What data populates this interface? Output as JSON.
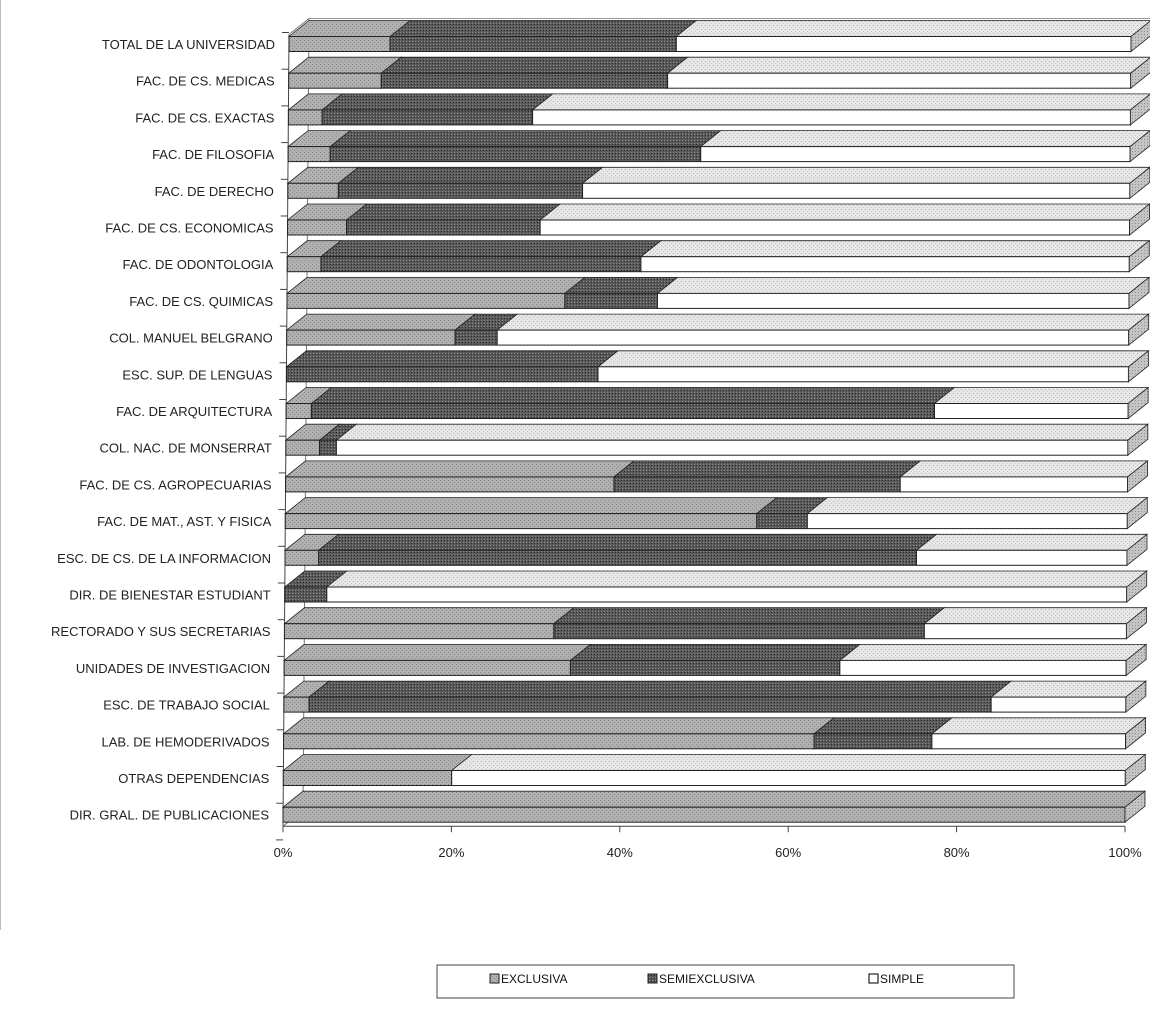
{
  "chart_data": {
    "type": "bar",
    "orientation": "horizontal",
    "stacked": "percent",
    "categories": [
      "TOTAL DE LA UNIVERSIDAD",
      "FAC. DE CS. MEDICAS",
      "FAC. DE CS. EXACTAS",
      "FAC. DE FILOSOFIA",
      "FAC. DE DERECHO",
      "FAC. DE CS. ECONOMICAS",
      "FAC. DE ODONTOLOGIA",
      "FAC. DE CS. QUIMICAS",
      "COL. MANUEL BELGRANO",
      "ESC. SUP. DE LENGUAS",
      "FAC. DE ARQUITECTURA",
      "COL. NAC. DE MONSERRAT",
      "FAC. DE CS. AGROPECUARIAS",
      "FAC. DE MAT., AST. Y FISICA",
      "ESC. DE CS. DE LA INFORMACION",
      "DIR. DE BIENESTAR ESTUDIANT",
      "RECTORADO Y SUS SECRETARIAS",
      "UNIDADES DE INVESTIGACION",
      "ESC. DE TRABAJO SOCIAL",
      "LAB. DE HEMODERIVADOS",
      "OTRAS DEPENDENCIAS",
      "DIR. GRAL. DE PUBLICACIONES"
    ],
    "series": [
      {
        "name": "EXCLUSIVA",
        "values": [
          12,
          11,
          4,
          5,
          6,
          7,
          4,
          33,
          20,
          0,
          3,
          4,
          39,
          56,
          4,
          0,
          32,
          34,
          3,
          63,
          20,
          100
        ]
      },
      {
        "name": "SEMIEXCLUSIVA",
        "values": [
          34,
          34,
          25,
          44,
          29,
          23,
          38,
          11,
          5,
          37,
          74,
          2,
          34,
          6,
          71,
          5,
          44,
          32,
          81,
          14,
          0,
          0
        ]
      },
      {
        "name": "SIMPLE",
        "values": [
          54,
          55,
          71,
          51,
          65,
          70,
          58,
          56,
          75,
          63,
          23,
          94,
          27,
          38,
          25,
          95,
          24,
          34,
          16,
          23,
          80,
          0
        ]
      }
    ],
    "xticks": [
      "0%",
      "20%",
      "40%",
      "60%",
      "80%",
      "100%"
    ],
    "xlim": [
      0,
      100
    ],
    "legend_position": "bottom",
    "colors": {
      "EXCLUSIVA": "#a9a9a9",
      "SEMIEXCLUSIVA": "#5f5f5f",
      "SIMPLE": "#ffffff"
    }
  }
}
